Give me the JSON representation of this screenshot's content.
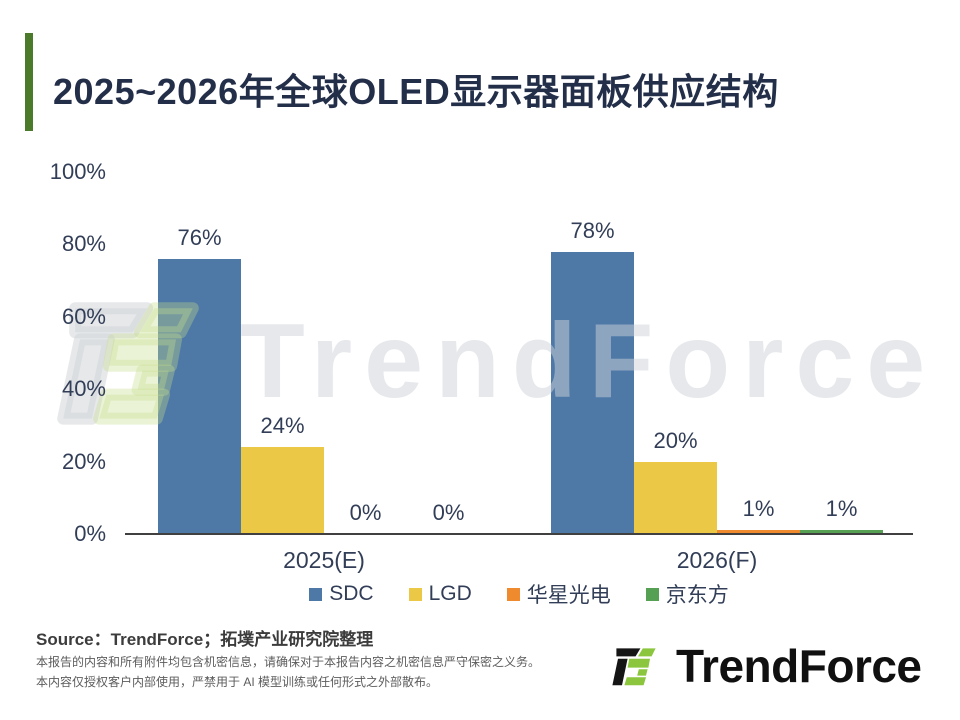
{
  "title": "2025~2026年全球OLED显示器面板供应结构",
  "watermark_text": "TrendForce",
  "chart_data": {
    "type": "bar",
    "title": "2025~2026年全球OLED显示器面板供应结构",
    "categories": [
      "2025(E)",
      "2026(F)"
    ],
    "series": [
      {
        "name": "SDC",
        "color": "#4E79A7",
        "values": [
          76,
          78
        ]
      },
      {
        "name": "LGD",
        "color": "#EBC947",
        "values": [
          24,
          20
        ]
      },
      {
        "name": "华星光电",
        "color": "#F08A2E",
        "values": [
          0,
          1
        ]
      },
      {
        "name": "京东方",
        "color": "#55A052",
        "values": [
          0,
          1
        ]
      }
    ],
    "value_suffix": "%",
    "ytick_suffix": "%",
    "yticks": [
      0,
      20,
      40,
      60,
      80,
      100
    ],
    "ylim": [
      0,
      100
    ],
    "xlabel": "",
    "ylabel": "",
    "grid": false,
    "data_labels": true,
    "legend_position": "bottom"
  },
  "footer": {
    "source": "Source：TrendForce；拓墣产业研究院整理",
    "disclaimer": [
      "本报告的内容和所有附件均包含机密信息，请确保对于本报告内容之机密信息严守保密之义务。",
      "本内容仅授权客户内部使用，严禁用于 AI 模型训练或任何形式之外部散布。"
    ],
    "logo_text": "TrendForce"
  },
  "colors": {
    "accent_bar_green": "#4C7A2B",
    "logo_green": "#8CC63F",
    "logo_black": "#151515",
    "title_navy": "#232E49",
    "label_navy": "#323E57",
    "axis_line": "#404040"
  }
}
